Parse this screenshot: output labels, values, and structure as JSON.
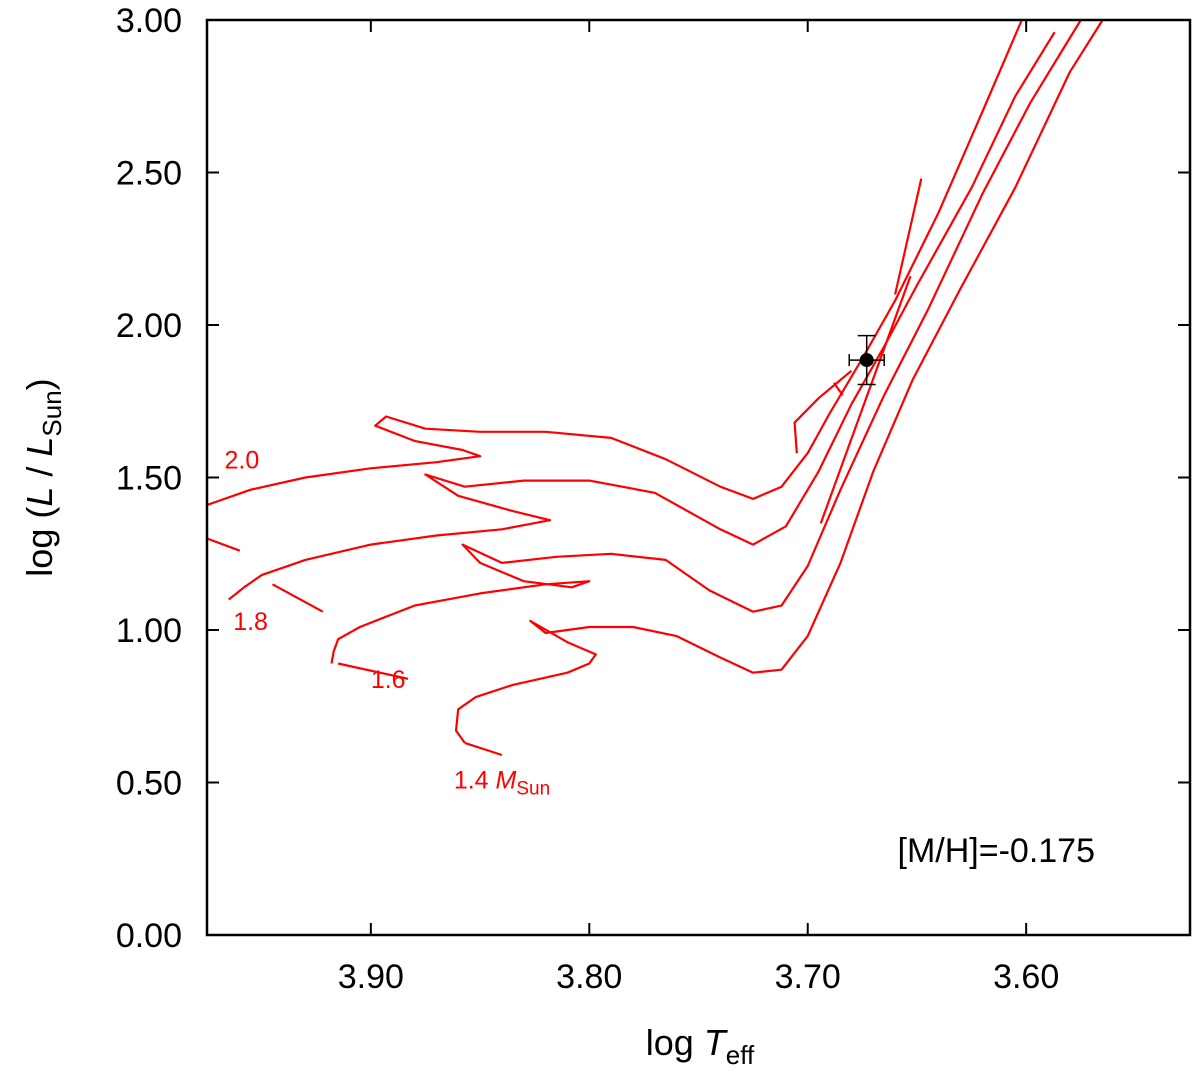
{
  "chart_data": {
    "type": "line",
    "title": "",
    "xlabel": {
      "prefix": "log ",
      "italic": "T",
      "sub": "eff"
    },
    "ylabel": {
      "prefix": "log (",
      "italic1": "L",
      "mid": " / ",
      "italic2": "L",
      "sub": "Sun",
      "suffix": ")"
    },
    "xlim": [
      3.975,
      3.525
    ],
    "ylim": [
      0.0,
      3.0
    ],
    "x_ticks": [
      3.9,
      3.8,
      3.7,
      3.6
    ],
    "x_tick_labels": [
      "3.90",
      "3.80",
      "3.70",
      "3.60"
    ],
    "y_ticks": [
      0.0,
      0.5,
      1.0,
      1.5,
      2.0,
      2.5,
      3.0
    ],
    "y_tick_labels": [
      "0.00",
      "0.50",
      "1.00",
      "1.50",
      "2.00",
      "2.50",
      "3.00"
    ],
    "annotation": "[M/H]=-0.175",
    "track_color": "#ff0000",
    "series": [
      {
        "name": "2.0",
        "label": "2.0",
        "label_at": [
          3.967,
          1.53
        ],
        "x": [
          3.975,
          3.955,
          3.93,
          3.9,
          3.87,
          3.85,
          3.858,
          3.88,
          3.898,
          3.893,
          3.875,
          3.85,
          3.82,
          3.79,
          3.765,
          3.74,
          3.725,
          3.712,
          3.7,
          3.69,
          3.675,
          3.66,
          3.64,
          3.62,
          3.602
        ],
        "y": [
          1.41,
          1.46,
          1.5,
          1.53,
          1.55,
          1.57,
          1.59,
          1.62,
          1.67,
          1.7,
          1.66,
          1.65,
          1.65,
          1.63,
          1.56,
          1.47,
          1.43,
          1.47,
          1.58,
          1.71,
          1.89,
          2.08,
          2.37,
          2.7,
          3.0
        ]
      },
      {
        "name": "1.8",
        "label": "1.8",
        "label_at": [
          3.963,
          1.0
        ],
        "x": [
          3.965,
          3.958,
          3.95,
          3.93,
          3.9,
          3.87,
          3.84,
          3.818,
          3.835,
          3.86,
          3.875,
          3.857,
          3.83,
          3.8,
          3.77,
          3.74,
          3.725,
          3.71,
          3.695,
          3.68,
          3.665,
          3.65,
          3.625,
          3.605,
          3.587
        ],
        "y": [
          1.1,
          1.14,
          1.18,
          1.23,
          1.28,
          1.31,
          1.33,
          1.36,
          1.39,
          1.44,
          1.51,
          1.47,
          1.49,
          1.49,
          1.45,
          1.33,
          1.28,
          1.34,
          1.52,
          1.74,
          1.93,
          2.13,
          2.45,
          2.75,
          2.96
        ]
      },
      {
        "name": "1.6",
        "label": "1.6",
        "label_at": [
          3.9,
          0.81
        ],
        "x": [
          3.918,
          3.917,
          3.915,
          3.905,
          3.88,
          3.85,
          3.82,
          3.8,
          3.808,
          3.83,
          3.85,
          3.858,
          3.84,
          3.815,
          3.79,
          3.765,
          3.745,
          3.725,
          3.712,
          3.7,
          3.685,
          3.665,
          3.645,
          3.62,
          3.598,
          3.575
        ],
        "y": [
          0.89,
          0.93,
          0.97,
          1.01,
          1.08,
          1.12,
          1.15,
          1.16,
          1.14,
          1.16,
          1.22,
          1.28,
          1.22,
          1.24,
          1.25,
          1.23,
          1.13,
          1.06,
          1.08,
          1.21,
          1.46,
          1.77,
          2.05,
          2.43,
          2.73,
          3.0
        ]
      },
      {
        "name": "1.4",
        "label": "1.4",
        "label_suffix_italic": "M",
        "label_suffix_sub": "Sun",
        "label_at": [
          3.862,
          0.48
        ],
        "x": [
          3.857,
          3.861,
          3.86,
          3.852,
          3.835,
          3.81,
          3.8,
          3.797,
          3.81,
          3.827,
          3.82,
          3.8,
          3.78,
          3.76,
          3.74,
          3.725,
          3.712,
          3.7,
          3.685,
          3.67,
          3.652,
          3.63,
          3.605,
          3.58,
          3.565
        ],
        "y": [
          0.63,
          0.67,
          0.74,
          0.78,
          0.82,
          0.86,
          0.89,
          0.92,
          0.96,
          1.03,
          0.99,
          1.01,
          1.01,
          0.98,
          0.91,
          0.86,
          0.87,
          0.98,
          1.22,
          1.52,
          1.82,
          2.12,
          2.45,
          2.83,
          3.0
        ]
      }
    ],
    "extra_segments": [
      {
        "x": [
          3.975,
          3.96
        ],
        "y": [
          1.3,
          1.26
        ]
      },
      {
        "x": [
          3.945,
          3.922
        ],
        "y": [
          1.15,
          1.06
        ]
      },
      {
        "x": [
          3.915,
          3.883
        ],
        "y": [
          0.89,
          0.84
        ]
      },
      {
        "x": [
          3.857,
          3.84
        ],
        "y": [
          0.63,
          0.59
        ]
      },
      {
        "x": [
          3.694,
          3.653
        ],
        "y": [
          1.35,
          2.16
        ]
      },
      {
        "x": [
          3.705,
          3.706,
          3.695,
          3.68
        ],
        "y": [
          1.58,
          1.68,
          1.76,
          1.85
        ]
      },
      {
        "x": [
          3.688,
          3.684
        ],
        "y": [
          1.81,
          1.77
        ]
      },
      {
        "x": [
          3.66,
          3.648
        ],
        "y": [
          2.1,
          2.48
        ]
      }
    ],
    "data_point": {
      "x": 3.673,
      "y": 1.885,
      "xerr": 0.008,
      "yerr": 0.08
    }
  }
}
